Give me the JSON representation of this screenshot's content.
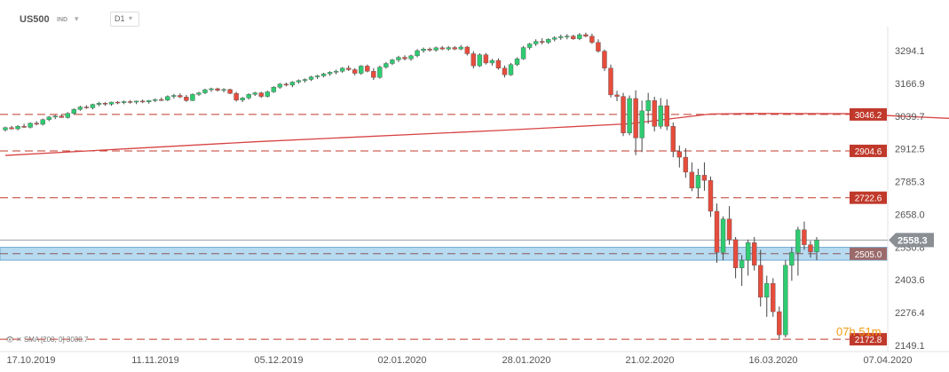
{
  "toolbar": {
    "symbol": "US500",
    "indicator_label": "IND",
    "timeframe": "D1"
  },
  "countdown": {
    "hours": "07",
    "h_unit": "h",
    "minutes": "51",
    "m_unit": "m"
  },
  "sma_legend": {
    "eye_icon": "eye-icon",
    "close_icon": "close-icon",
    "text": "SMA [200, 0] 3030.7"
  },
  "colors": {
    "bull": "#2ecc71",
    "bear": "#e74c3c",
    "sma": "#d84343",
    "level_line": "#c0392b",
    "level_label_bg": "#c0392b",
    "support_zone": "#aad4ee",
    "current_price_bg": "#8a8f94",
    "timer": "#f39c12"
  },
  "chart_data": {
    "type": "candlestick",
    "symbol": "US500",
    "timeframe": "D1",
    "ylim": [
      2120,
      3390
    ],
    "y_ticks": [
      "3294.1",
      "3166.9",
      "3039.7",
      "2912.5",
      "2785.3",
      "2658.0",
      "2530.8",
      "2403.6",
      "2276.4",
      "2149.1"
    ],
    "x_ticks": [
      "17.10.2019",
      "11.11.2019",
      "05.12.2019",
      "02.01.2020",
      "28.01.2020",
      "21.02.2020",
      "16.03.2020",
      "07.04.2020"
    ],
    "current_price": "2558.3",
    "horizontal_levels": [
      {
        "value": 3046.2,
        "label": "3046.2"
      },
      {
        "value": 2904.6,
        "label": "2904.6"
      },
      {
        "value": 2722.6,
        "label": "2722.6"
      },
      {
        "value": 2505.0,
        "label": "2505.0"
      },
      {
        "value": 2172.8,
        "label": "2172.8"
      }
    ],
    "support_zone": [
      2480,
      2530
    ],
    "sma": {
      "name": "SMA [200, 0]",
      "value": 3030.7,
      "points": [
        [
          0,
          2887
        ],
        [
          40,
          2940
        ],
        [
          80,
          2985
        ],
        [
          100,
          3010
        ],
        [
          113,
          3048
        ],
        [
          120,
          3050
        ],
        [
          135,
          3049
        ],
        [
          143,
          3040
        ],
        [
          152,
          3030
        ]
      ]
    },
    "candles": [
      [
        2986,
        2999,
        2980,
        2995
      ],
      [
        2995,
        3002,
        2988,
        2990
      ],
      [
        2990,
        3005,
        2985,
        3000
      ],
      [
        3000,
        3010,
        2994,
        2996
      ],
      [
        2996,
        3015,
        2992,
        3012
      ],
      [
        3012,
        3020,
        3004,
        3008
      ],
      [
        3008,
        3030,
        3003,
        3026
      ],
      [
        3026,
        3040,
        3020,
        3036
      ],
      [
        3036,
        3044,
        3028,
        3040
      ],
      [
        3040,
        3048,
        3033,
        3034
      ],
      [
        3034,
        3055,
        3030,
        3050
      ],
      [
        3050,
        3070,
        3044,
        3066
      ],
      [
        3066,
        3080,
        3060,
        3075
      ],
      [
        3075,
        3082,
        3068,
        3072
      ],
      [
        3072,
        3088,
        3066,
        3085
      ],
      [
        3085,
        3095,
        3078,
        3090
      ],
      [
        3090,
        3094,
        3080,
        3086
      ],
      [
        3086,
        3096,
        3080,
        3094
      ],
      [
        3094,
        3098,
        3086,
        3092
      ],
      [
        3092,
        3100,
        3086,
        3096
      ],
      [
        3096,
        3102,
        3088,
        3094
      ],
      [
        3094,
        3100,
        3086,
        3098
      ],
      [
        3098,
        3104,
        3090,
        3095
      ],
      [
        3095,
        3102,
        3088,
        3100
      ],
      [
        3100,
        3108,
        3094,
        3104
      ],
      [
        3104,
        3112,
        3098,
        3102
      ],
      [
        3102,
        3120,
        3098,
        3116
      ],
      [
        3116,
        3126,
        3108,
        3120
      ],
      [
        3120,
        3128,
        3110,
        3114
      ],
      [
        3114,
        3122,
        3095,
        3100
      ],
      [
        3100,
        3128,
        3098,
        3124
      ],
      [
        3124,
        3134,
        3118,
        3130
      ],
      [
        3130,
        3146,
        3125,
        3142
      ],
      [
        3142,
        3150,
        3134,
        3146
      ],
      [
        3146,
        3150,
        3135,
        3140
      ],
      [
        3140,
        3148,
        3132,
        3143
      ],
      [
        3143,
        3146,
        3125,
        3128
      ],
      [
        3128,
        3134,
        3096,
        3102
      ],
      [
        3102,
        3114,
        3094,
        3110
      ],
      [
        3110,
        3128,
        3104,
        3124
      ],
      [
        3124,
        3134,
        3118,
        3130
      ],
      [
        3130,
        3134,
        3110,
        3116
      ],
      [
        3116,
        3138,
        3112,
        3134
      ],
      [
        3134,
        3156,
        3130,
        3152
      ],
      [
        3152,
        3168,
        3146,
        3164
      ],
      [
        3164,
        3170,
        3155,
        3160
      ],
      [
        3160,
        3175,
        3152,
        3172
      ],
      [
        3172,
        3182,
        3166,
        3178
      ],
      [
        3178,
        3186,
        3170,
        3182
      ],
      [
        3182,
        3196,
        3176,
        3192
      ],
      [
        3192,
        3200,
        3184,
        3196
      ],
      [
        3196,
        3208,
        3190,
        3204
      ],
      [
        3204,
        3214,
        3196,
        3210
      ],
      [
        3210,
        3220,
        3202,
        3214
      ],
      [
        3214,
        3230,
        3208,
        3226
      ],
      [
        3226,
        3236,
        3215,
        3220
      ],
      [
        3220,
        3226,
        3198,
        3206
      ],
      [
        3206,
        3238,
        3200,
        3234
      ],
      [
        3234,
        3240,
        3210,
        3214
      ],
      [
        3214,
        3226,
        3180,
        3190
      ],
      [
        3190,
        3236,
        3185,
        3230
      ],
      [
        3230,
        3250,
        3224,
        3244
      ],
      [
        3244,
        3262,
        3238,
        3258
      ],
      [
        3258,
        3274,
        3250,
        3268
      ],
      [
        3268,
        3276,
        3256,
        3262
      ],
      [
        3262,
        3278,
        3255,
        3274
      ],
      [
        3274,
        3300,
        3268,
        3294
      ],
      [
        3294,
        3306,
        3286,
        3300
      ],
      [
        3300,
        3306,
        3290,
        3296
      ],
      [
        3296,
        3310,
        3290,
        3305
      ],
      [
        3305,
        3312,
        3296,
        3300
      ],
      [
        3300,
        3312,
        3294,
        3306
      ],
      [
        3306,
        3312,
        3296,
        3300
      ],
      [
        3300,
        3316,
        3296,
        3308
      ],
      [
        3308,
        3312,
        3275,
        3282
      ],
      [
        3282,
        3292,
        3225,
        3235
      ],
      [
        3235,
        3284,
        3230,
        3278
      ],
      [
        3278,
        3285,
        3240,
        3246
      ],
      [
        3246,
        3262,
        3236,
        3256
      ],
      [
        3256,
        3264,
        3220,
        3226
      ],
      [
        3226,
        3236,
        3190,
        3200
      ],
      [
        3200,
        3246,
        3196,
        3240
      ],
      [
        3240,
        3268,
        3234,
        3262
      ],
      [
        3262,
        3312,
        3258,
        3306
      ],
      [
        3306,
        3324,
        3298,
        3320
      ],
      [
        3320,
        3338,
        3312,
        3330
      ],
      [
        3330,
        3342,
        3318,
        3326
      ],
      [
        3326,
        3342,
        3320,
        3338
      ],
      [
        3338,
        3350,
        3330,
        3344
      ],
      [
        3344,
        3356,
        3336,
        3348
      ],
      [
        3348,
        3358,
        3338,
        3350
      ],
      [
        3350,
        3356,
        3336,
        3340
      ],
      [
        3340,
        3362,
        3335,
        3356
      ],
      [
        3356,
        3364,
        3346,
        3350
      ],
      [
        3350,
        3360,
        3320,
        3326
      ],
      [
        3326,
        3338,
        3286,
        3292
      ],
      [
        3292,
        3298,
        3215,
        3226
      ],
      [
        3226,
        3240,
        3112,
        3122
      ],
      [
        3122,
        3138,
        3098,
        3116
      ],
      [
        3116,
        3130,
        2962,
        2974
      ],
      [
        2974,
        3120,
        2965,
        3108
      ],
      [
        3108,
        3140,
        2888,
        2955
      ],
      [
        2955,
        3100,
        2900,
        3060
      ],
      [
        3060,
        3130,
        3010,
        3100
      ],
      [
        3100,
        3115,
        2980,
        3000
      ],
      [
        3000,
        3110,
        2990,
        3080
      ],
      [
        3080,
        3105,
        2985,
        3000
      ],
      [
        3000,
        3015,
        2880,
        2902
      ],
      [
        2902,
        2925,
        2840,
        2880
      ],
      [
        2880,
        2915,
        2800,
        2822
      ],
      [
        2822,
        2860,
        2748,
        2760
      ],
      [
        2760,
        2835,
        2720,
        2810
      ],
      [
        2810,
        2860,
        2750,
        2790
      ],
      [
        2790,
        2805,
        2648,
        2670
      ],
      [
        2670,
        2700,
        2470,
        2510
      ],
      [
        2510,
        2650,
        2480,
        2640
      ],
      [
        2640,
        2690,
        2540,
        2560
      ],
      [
        2560,
        2570,
        2410,
        2450
      ],
      [
        2450,
        2500,
        2380,
        2480
      ],
      [
        2480,
        2560,
        2420,
        2548
      ],
      [
        2548,
        2570,
        2440,
        2460
      ],
      [
        2460,
        2520,
        2300,
        2336
      ],
      [
        2336,
        2420,
        2260,
        2390
      ],
      [
        2390,
        2410,
        2260,
        2280
      ],
      [
        2280,
        2300,
        2170,
        2190
      ],
      [
        2190,
        2480,
        2180,
        2460
      ],
      [
        2460,
        2530,
        2400,
        2510
      ],
      [
        2510,
        2610,
        2420,
        2598
      ],
      [
        2598,
        2630,
        2520,
        2540
      ],
      [
        2540,
        2555,
        2490,
        2512
      ],
      [
        2512,
        2570,
        2480,
        2558
      ]
    ]
  }
}
